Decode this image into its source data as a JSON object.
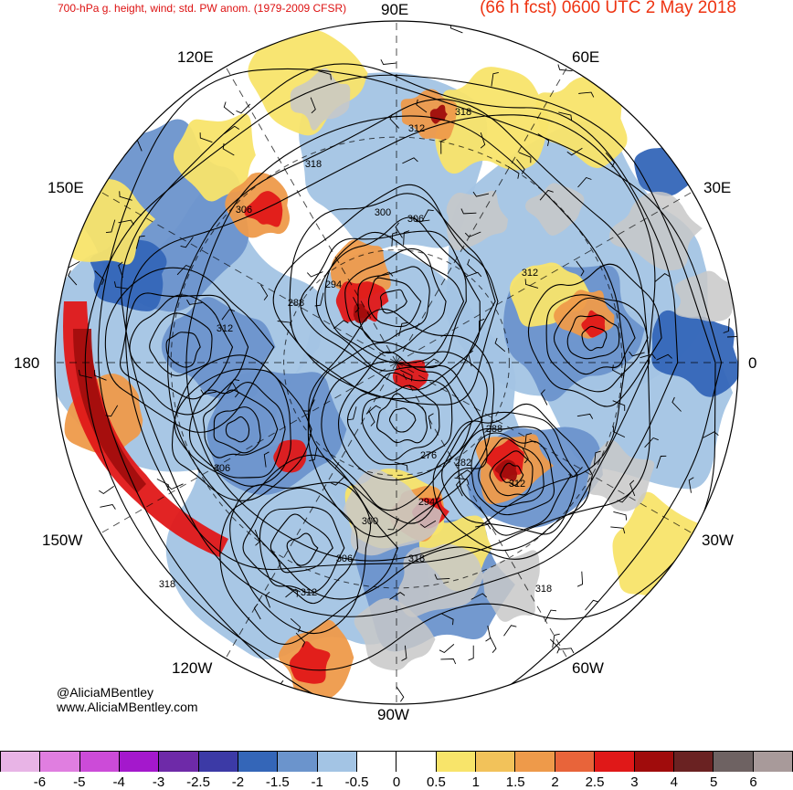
{
  "header": {
    "title_left": "700-hPa g. height, wind; std. PW anom. (1979-2009 CFSR)",
    "title_right": "(66 h fcst) 0600 UTC 2 May 2018"
  },
  "lon_labels": {
    "e90": "90E",
    "e60": "60E",
    "e120": "120E",
    "e150": "150E",
    "e30": "30E",
    "lon180": "180",
    "lon0": "0",
    "w150": "150W",
    "w30": "30W",
    "w120": "120W",
    "w60": "60W",
    "w90": "90W"
  },
  "contour_labels": [
    "318",
    "312",
    "318",
    "306",
    "300",
    "306",
    "294",
    "288",
    "312",
    "312",
    "306",
    "276",
    "282",
    "288",
    "312",
    "294",
    "300",
    "306",
    "318",
    "312",
    "318",
    "318"
  ],
  "credit": {
    "handle": "@AliciaMBentley",
    "site": "www.AliciaMBentley.com"
  },
  "colorbar": {
    "colors": [
      "#e8b4e6",
      "#e07ee0",
      "#cc4bd8",
      "#a418cc",
      "#6e2aa8",
      "#3c3aa6",
      "#3466b8",
      "#6b94cc",
      "#a3c4e4",
      "#ffffff",
      "#ffffff",
      "#f8e46a",
      "#f2c25a",
      "#ee9a4a",
      "#e8643a",
      "#e01818",
      "#a00c0c",
      "#6a2222",
      "#6e6262",
      "#a89a9a"
    ],
    "ticks": [
      "-6",
      "-5",
      "-4",
      "-3",
      "-2.5",
      "-2",
      "-1.5",
      "-1",
      "-0.5",
      "0",
      "0.5",
      "1",
      "1.5",
      "2",
      "2.5",
      "3",
      "4",
      "5",
      "6"
    ]
  },
  "map_colors": {
    "ocean": "#ffffff",
    "land": "#c8c8c8",
    "neg_light": "#a3c4e4",
    "neg_mid": "#6b94cc",
    "neg_dark": "#3466b8",
    "pos_yellow": "#f8e46a",
    "pos_orange": "#ee9a4a",
    "pos_red": "#e01818",
    "pos_darkred": "#a00c0c",
    "contour": "#000000"
  }
}
